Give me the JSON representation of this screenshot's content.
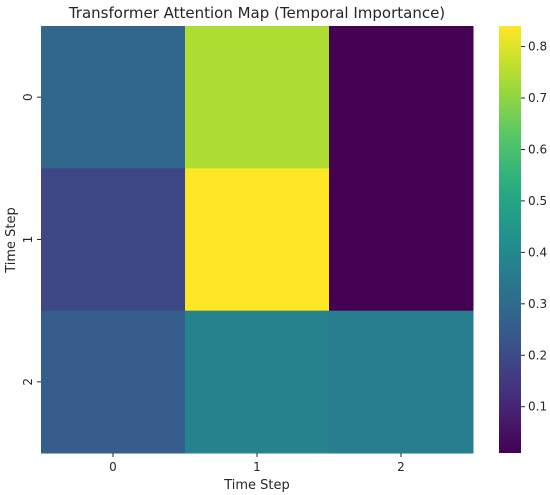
{
  "chart_data": {
    "type": "heatmap",
    "title": "Transformer Attention Map (Temporal Importance)",
    "xlabel": "Time Step",
    "ylabel": "Time Step",
    "x_tick_labels": [
      "0",
      "1",
      "2"
    ],
    "y_tick_labels": [
      "0",
      "1",
      "2"
    ],
    "values": [
      [
        0.29,
        0.74,
        0.01
      ],
      [
        0.19,
        0.84,
        0.01
      ],
      [
        0.26,
        0.38,
        0.36
      ]
    ],
    "colormap": "viridis",
    "colorbar": {
      "range": [
        0.01,
        0.84
      ],
      "ticks": [
        "0.1",
        "0.2",
        "0.3",
        "0.4",
        "0.5",
        "0.6",
        "0.7",
        "0.8"
      ],
      "tick_values": [
        0.1,
        0.2,
        0.3,
        0.4,
        0.5,
        0.6,
        0.7,
        0.8
      ]
    }
  }
}
